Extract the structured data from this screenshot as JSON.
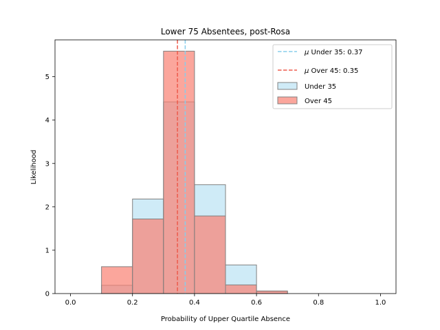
{
  "chart_data": {
    "type": "histogram",
    "title": "Lower 75 Absentees, post-Rosa",
    "xlabel": "Probability of Upper Quartile Absence",
    "ylabel": "Likelihood",
    "xlim": [
      -0.05,
      1.05
    ],
    "ylim": [
      0,
      5.85
    ],
    "xticks": [
      0.0,
      0.2,
      0.4,
      0.6,
      0.8,
      1.0
    ],
    "xtick_labels": [
      "0.0",
      "0.2",
      "0.4",
      "0.6",
      "0.8",
      "1.0"
    ],
    "yticks": [
      0,
      1,
      2,
      3,
      4,
      5
    ],
    "ytick_labels": [
      "0",
      "1",
      "2",
      "3",
      "4",
      "5"
    ],
    "bin_edges": [
      0.0,
      0.1,
      0.2,
      0.3,
      0.4,
      0.5,
      0.6,
      0.7,
      0.8,
      0.9,
      1.0
    ],
    "legend_position": "upper right",
    "series": [
      {
        "name": "Under 35",
        "values": [
          0,
          0.19,
          2.18,
          4.42,
          2.51,
          0.66,
          0.05,
          0,
          0,
          0
        ],
        "mean": 0.37,
        "mean_label": "Under 35: 0.37",
        "color": "#87ceeb",
        "edge_color": "#808080",
        "opacity": 0.4
      },
      {
        "name": "Over 45",
        "values": [
          0,
          0.62,
          1.72,
          5.59,
          1.79,
          0.2,
          0.06,
          0,
          0,
          0
        ],
        "mean": 0.345,
        "mean_label": "Over 45: 0.35",
        "color": "#fa8072",
        "edge_color": "#808080",
        "opacity": 0.7
      }
    ],
    "mean_line_colors": [
      "#87ceeb",
      "#ed5a4b"
    ]
  }
}
